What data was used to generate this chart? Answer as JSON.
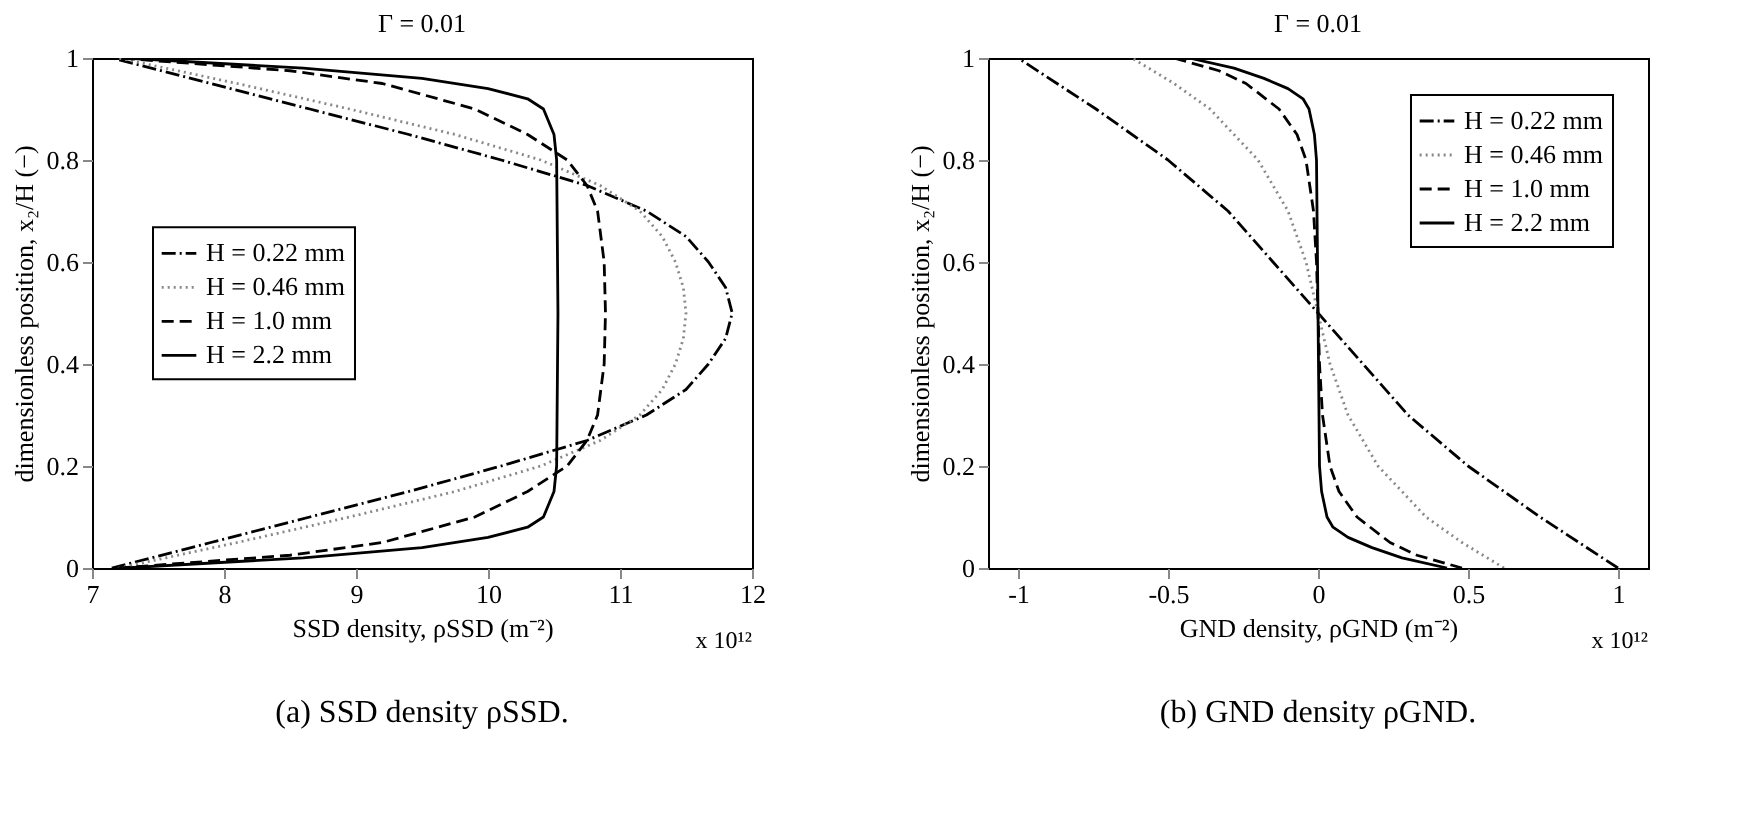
{
  "chart_data": [
    {
      "type": "line",
      "title": "Γ = 0.01",
      "xlabel": "SSD density, ρSSD (m⁻²)",
      "ylabel": "dimensionless position, x₂/H (−)",
      "annotations": [
        "x 10¹²",
        "(a) SSD density ρSSD."
      ],
      "xlim": [
        7,
        12
      ],
      "xticks": [
        7,
        8,
        9,
        10,
        11,
        12
      ],
      "ylim": [
        0,
        1
      ],
      "yticks": [
        0,
        0.2,
        0.4,
        0.6,
        0.8,
        1
      ],
      "grid": false,
      "legend": "left",
      "series": [
        {
          "name": "H = 0.22 mm",
          "color": "#000000",
          "line_style": "dashdot",
          "x": [
            7.15,
            7.9,
            8.65,
            9.4,
            10.1,
            10.75,
            11.2,
            11.5,
            11.67,
            11.8,
            11.85,
            11.8,
            11.67,
            11.5,
            11.2,
            10.75,
            10.1,
            9.4,
            8.65,
            7.9,
            7.15
          ],
          "values": [
            0,
            0.05,
            0.1,
            0.15,
            0.2,
            0.25,
            0.3,
            0.35,
            0.4,
            0.45,
            0.5,
            0.55,
            0.6,
            0.65,
            0.7,
            0.75,
            0.8,
            0.85,
            0.9,
            0.95,
            1
          ]
        },
        {
          "name": "H = 0.46 mm",
          "color": "#888888",
          "line_style": "dotted",
          "x": [
            7.2,
            8.1,
            8.95,
            9.75,
            10.4,
            10.85,
            11.15,
            11.32,
            11.42,
            11.48,
            11.5,
            11.48,
            11.42,
            11.32,
            11.15,
            10.85,
            10.4,
            9.75,
            8.95,
            8.1,
            7.2
          ],
          "values": [
            0,
            0.05,
            0.1,
            0.15,
            0.2,
            0.25,
            0.3,
            0.35,
            0.4,
            0.45,
            0.5,
            0.55,
            0.6,
            0.65,
            0.7,
            0.75,
            0.8,
            0.85,
            0.9,
            0.95,
            1
          ]
        },
        {
          "name": "H = 1.0 mm",
          "color": "#000000",
          "line_style": "dashed",
          "x": [
            7.2,
            8.5,
            9.2,
            9.9,
            10.3,
            10.6,
            10.75,
            10.83,
            10.88,
            10.89,
            10.88,
            10.83,
            10.75,
            10.6,
            10.3,
            9.9,
            9.2,
            8.5,
            7.2
          ],
          "values": [
            0,
            0.025,
            0.05,
            0.1,
            0.15,
            0.2,
            0.25,
            0.3,
            0.4,
            0.5,
            0.6,
            0.7,
            0.75,
            0.8,
            0.85,
            0.9,
            0.95,
            0.975,
            1
          ]
        },
        {
          "name": "H = 2.2 mm",
          "color": "#000000",
          "line_style": "solid",
          "x": [
            7.25,
            8.6,
            9.5,
            10.0,
            10.3,
            10.42,
            10.5,
            10.52,
            10.53,
            10.52,
            10.5,
            10.42,
            10.3,
            10.0,
            9.5,
            8.6,
            7.25
          ],
          "values": [
            0,
            0.02,
            0.04,
            0.06,
            0.08,
            0.1,
            0.15,
            0.2,
            0.5,
            0.8,
            0.85,
            0.9,
            0.92,
            0.94,
            0.96,
            0.98,
            1
          ]
        }
      ]
    },
    {
      "type": "line",
      "title": "Γ = 0.01",
      "xlabel": "GND density, ρGND (m⁻²)",
      "ylabel": "dimensionless position, x₂/H (−)",
      "annotations": [
        "x 10¹²",
        "(b) GND density ρGND."
      ],
      "xlim": [
        -1.1,
        1.1
      ],
      "xticks": [
        -1,
        -0.5,
        0,
        0.5,
        1
      ],
      "ylim": [
        0,
        1
      ],
      "yticks": [
        0,
        0.2,
        0.4,
        0.6,
        0.8,
        1
      ],
      "grid": false,
      "legend": "top right",
      "series": [
        {
          "name": "H = 0.22 mm",
          "color": "#000000",
          "line_style": "dashdot",
          "x": [
            1.0,
            0.74,
            0.5,
            0.3,
            0.15,
            0,
            -0.15,
            -0.3,
            -0.5,
            -0.74,
            -1.0
          ],
          "values": [
            0,
            0.1,
            0.2,
            0.3,
            0.4,
            0.5,
            0.6,
            0.7,
            0.8,
            0.9,
            1
          ]
        },
        {
          "name": "H = 0.46 mm",
          "color": "#888888",
          "line_style": "dotted",
          "x": [
            0.62,
            0.48,
            0.36,
            0.2,
            0.1,
            0.04,
            0,
            -0.04,
            -0.1,
            -0.2,
            -0.36,
            -0.48,
            -0.62
          ],
          "values": [
            0,
            0.05,
            0.1,
            0.2,
            0.3,
            0.4,
            0.5,
            0.6,
            0.7,
            0.8,
            0.9,
            0.95,
            1
          ]
        },
        {
          "name": "H = 1.0 mm",
          "color": "#000000",
          "line_style": "dashed",
          "x": [
            0.48,
            0.33,
            0.24,
            0.13,
            0.07,
            0.04,
            0.015,
            0.005,
            0,
            -0.005,
            -0.015,
            -0.04,
            -0.07,
            -0.13,
            -0.24,
            -0.33,
            -0.48
          ],
          "values": [
            0,
            0.025,
            0.05,
            0.1,
            0.15,
            0.2,
            0.3,
            0.4,
            0.5,
            0.6,
            0.7,
            0.8,
            0.85,
            0.9,
            0.95,
            0.975,
            1
          ]
        },
        {
          "name": "H = 2.2 mm",
          "color": "#000000",
          "line_style": "solid",
          "x": [
            0.43,
            0.28,
            0.18,
            0.1,
            0.05,
            0.03,
            0.012,
            0.005,
            0,
            -0.005,
            -0.012,
            -0.03,
            -0.05,
            -0.1,
            -0.18,
            -0.28,
            -0.43
          ],
          "values": [
            0,
            0.02,
            0.04,
            0.06,
            0.08,
            0.1,
            0.15,
            0.2,
            0.5,
            0.8,
            0.85,
            0.9,
            0.92,
            0.94,
            0.96,
            0.98,
            1
          ]
        }
      ]
    }
  ]
}
